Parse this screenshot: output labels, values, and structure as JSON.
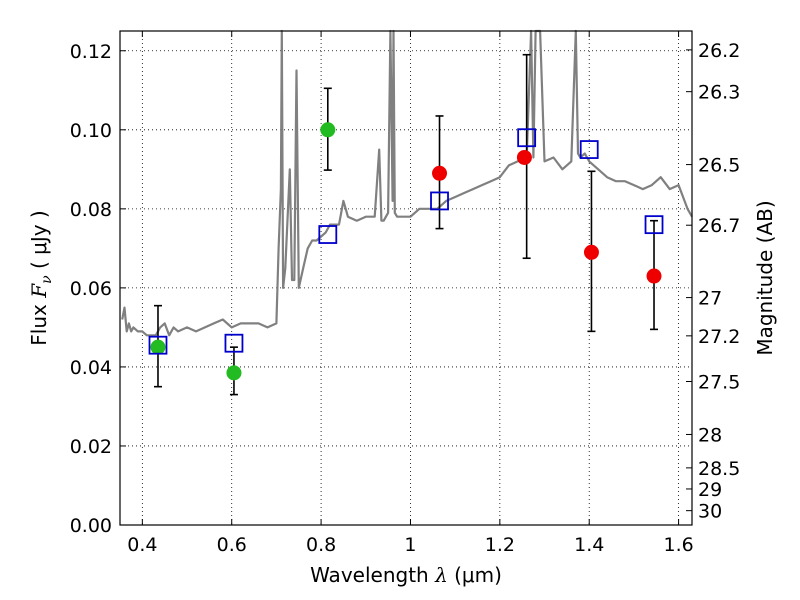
{
  "chart_data": {
    "type": "scatter",
    "xlabel": "Wavelength  λ (μm)",
    "ylabel": "Flux  Fν (μJy)",
    "ylabel_parts": {
      "pre": "Flux ",
      "sym": "F",
      "sub": "ν",
      "post": " ( μJy )"
    },
    "xlabel_parts": {
      "pre": "Wavelength ",
      "sym": "λ",
      "post": " (μm)"
    },
    "ylabel_right": "Magnitude (AB)",
    "xlim": [
      0.35,
      1.63
    ],
    "ylim": [
      0.0,
      0.125
    ],
    "grid": true,
    "x_ticks": [
      {
        "value": 0.4,
        "label": "0.4"
      },
      {
        "value": 0.6,
        "label": "0.6"
      },
      {
        "value": 0.8,
        "label": "0.8"
      },
      {
        "value": 1.0,
        "label": "1"
      },
      {
        "value": 1.2,
        "label": "1.2"
      },
      {
        "value": 1.4,
        "label": "1.4"
      },
      {
        "value": 1.6,
        "label": "1.6"
      }
    ],
    "y_ticks": [
      {
        "value": 0.0,
        "label": "0.00"
      },
      {
        "value": 0.02,
        "label": "0.02"
      },
      {
        "value": 0.04,
        "label": "0.04"
      },
      {
        "value": 0.06,
        "label": "0.06"
      },
      {
        "value": 0.08,
        "label": "0.08"
      },
      {
        "value": 0.1,
        "label": "0.10"
      },
      {
        "value": 0.12,
        "label": "0.12"
      }
    ],
    "mag_ticks": [
      {
        "value": 26.2,
        "label": "26.2"
      },
      {
        "value": 26.3,
        "label": "26.3"
      },
      {
        "value": 26.5,
        "label": "26.5"
      },
      {
        "value": 26.7,
        "label": "26.7"
      },
      {
        "value": 27.0,
        "label": "27"
      },
      {
        "value": 27.2,
        "label": "27.2"
      },
      {
        "value": 27.5,
        "label": "27.5"
      },
      {
        "value": 28.0,
        "label": "28"
      },
      {
        "value": 28.5,
        "label": "28.5"
      },
      {
        "value": 29.0,
        "label": "29"
      },
      {
        "value": 30.0,
        "label": "30"
      }
    ],
    "series": [
      {
        "name": "model-spectrum",
        "kind": "line",
        "color": "#808080",
        "x": [
          0.355,
          0.36,
          0.365,
          0.37,
          0.375,
          0.38,
          0.39,
          0.4,
          0.41,
          0.42,
          0.43,
          0.44,
          0.45,
          0.46,
          0.47,
          0.48,
          0.5,
          0.52,
          0.54,
          0.56,
          0.58,
          0.6,
          0.62,
          0.64,
          0.66,
          0.68,
          0.7,
          0.705,
          0.71,
          0.712,
          0.715,
          0.72,
          0.73,
          0.735,
          0.74,
          0.745,
          0.75,
          0.76,
          0.77,
          0.78,
          0.79,
          0.8,
          0.81,
          0.82,
          0.84,
          0.85,
          0.855,
          0.86,
          0.88,
          0.9,
          0.92,
          0.93,
          0.935,
          0.94,
          0.95,
          0.955,
          0.96,
          0.962,
          0.965,
          0.97,
          0.98,
          1.0,
          1.02,
          1.04,
          1.06,
          1.08,
          1.1,
          1.12,
          1.14,
          1.16,
          1.18,
          1.2,
          1.22,
          1.24,
          1.26,
          1.27,
          1.275,
          1.28,
          1.29,
          1.3,
          1.32,
          1.34,
          1.36,
          1.37,
          1.375,
          1.38,
          1.39,
          1.4,
          1.42,
          1.44,
          1.46,
          1.48,
          1.5,
          1.52,
          1.54,
          1.56,
          1.58,
          1.6,
          1.62,
          1.63
        ],
        "y": [
          0.052,
          0.055,
          0.049,
          0.051,
          0.049,
          0.05,
          0.049,
          0.049,
          0.048,
          0.048,
          0.048,
          0.05,
          0.051,
          0.048,
          0.05,
          0.049,
          0.05,
          0.049,
          0.05,
          0.051,
          0.052,
          0.05,
          0.051,
          0.051,
          0.051,
          0.05,
          0.051,
          0.07,
          0.085,
          0.125,
          0.06,
          0.065,
          0.09,
          0.062,
          0.062,
          0.115,
          0.06,
          0.065,
          0.07,
          0.072,
          0.072,
          0.073,
          0.074,
          0.076,
          0.076,
          0.082,
          0.08,
          0.078,
          0.077,
          0.078,
          0.078,
          0.095,
          0.077,
          0.077,
          0.079,
          0.125,
          0.082,
          0.125,
          0.079,
          0.078,
          0.078,
          0.078,
          0.08,
          0.08,
          0.08,
          0.082,
          0.083,
          0.084,
          0.085,
          0.086,
          0.087,
          0.088,
          0.091,
          0.092,
          0.093,
          0.125,
          0.093,
          0.125,
          0.125,
          0.092,
          0.093,
          0.09,
          0.092,
          0.125,
          0.094,
          0.093,
          0.094,
          0.092,
          0.09,
          0.088,
          0.087,
          0.087,
          0.086,
          0.085,
          0.086,
          0.088,
          0.085,
          0.086,
          0.08,
          0.078
        ]
      },
      {
        "name": "observed-green",
        "kind": "points",
        "color": "#22bb22",
        "x": [
          0.435,
          0.605,
          0.815
        ],
        "y": [
          0.045,
          0.0385,
          0.1
        ]
      },
      {
        "name": "observed-red",
        "kind": "points",
        "color": "#ee0000",
        "x": [
          1.065,
          1.255,
          1.405,
          1.545
        ],
        "y": [
          0.089,
          0.093,
          0.069,
          0.063
        ]
      },
      {
        "name": "model-photometry",
        "kind": "squares",
        "color": "#0000cc",
        "x": [
          0.435,
          0.605,
          0.815,
          1.065,
          1.26,
          1.4,
          1.545
        ],
        "y": [
          0.0455,
          0.046,
          0.0735,
          0.082,
          0.098,
          0.095,
          0.076
        ]
      }
    ],
    "error_bars": [
      {
        "x": 0.435,
        "low": 0.035,
        "high": 0.0555
      },
      {
        "x": 0.605,
        "low": 0.033,
        "high": 0.045
      },
      {
        "x": 0.815,
        "low": 0.0898,
        "high": 0.1105
      },
      {
        "x": 1.065,
        "low": 0.075,
        "high": 0.1035
      },
      {
        "x": 1.26,
        "low": 0.0675,
        "high": 0.119
      },
      {
        "x": 1.405,
        "low": 0.049,
        "high": 0.0895
      },
      {
        "x": 1.545,
        "low": 0.0495,
        "high": 0.077
      }
    ]
  }
}
